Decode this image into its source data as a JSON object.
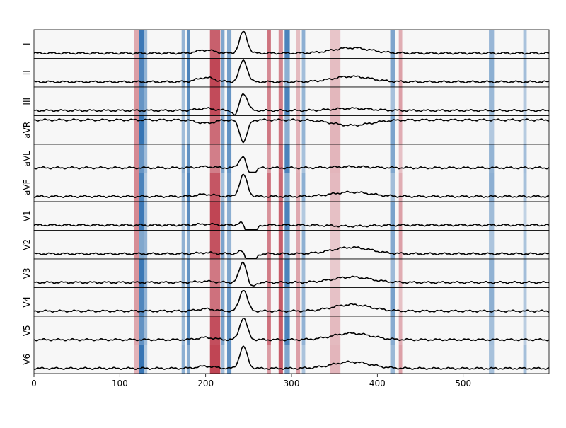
{
  "chart_data": {
    "type": "heatmap",
    "title": "",
    "xlabel": "",
    "ylabel": "",
    "xlim": [
      0,
      600
    ],
    "xticks": [
      0,
      100,
      200,
      300,
      400,
      500
    ],
    "grid": false,
    "colormap": "RdBu_r",
    "trace_color": "#000000",
    "leads": [
      {
        "name": "I",
        "morph": {
          "p": 0.15,
          "q": 0,
          "r": 1.0,
          "s": 0,
          "t": 0.25
        }
      },
      {
        "name": "II",
        "morph": {
          "p": 0.2,
          "q": 0,
          "r": 1.0,
          "s": 0,
          "t": 0.25
        }
      },
      {
        "name": "III",
        "morph": {
          "p": 0.1,
          "q": -0.3,
          "r": 0.8,
          "s": 0,
          "t": 0.1
        }
      },
      {
        "name": "aVR",
        "morph": {
          "p": -0.15,
          "q": 0,
          "r": -1.0,
          "s": 0,
          "t": -0.25
        }
      },
      {
        "name": "aVL",
        "morph": {
          "p": 0.05,
          "q": 0,
          "r": 0.6,
          "s": -0.5,
          "t": 0.05
        }
      },
      {
        "name": "aVF",
        "morph": {
          "p": 0.1,
          "q": 0,
          "r": 1.0,
          "s": 0,
          "t": 0.2
        }
      },
      {
        "name": "V1",
        "morph": {
          "p": 0.05,
          "q": 0,
          "r": 0.2,
          "s": -1.0,
          "t": -0.05
        }
      },
      {
        "name": "V2",
        "morph": {
          "p": 0.05,
          "q": 0,
          "r": 0.2,
          "s": -0.8,
          "t": 0.3
        }
      },
      {
        "name": "V3",
        "morph": {
          "p": 0.05,
          "q": 0,
          "r": 1.0,
          "s": -0.3,
          "t": 0.25
        }
      },
      {
        "name": "V4",
        "morph": {
          "p": 0.1,
          "q": 0,
          "r": 1.0,
          "s": 0,
          "t": 0.3
        }
      },
      {
        "name": "V5",
        "morph": {
          "p": 0.1,
          "q": 0,
          "r": 1.0,
          "s": 0,
          "t": 0.3
        }
      },
      {
        "name": "V6",
        "morph": {
          "p": 0.1,
          "q": 0,
          "r": 1.0,
          "s": 0,
          "t": 0.3
        }
      }
    ],
    "heat_bands": [
      {
        "x": 117,
        "w": 6,
        "v": 0.5
      },
      {
        "x": 122,
        "w": 6,
        "v": -0.9
      },
      {
        "x": 128,
        "w": 4,
        "v": -0.5
      },
      {
        "x": 172,
        "w": 4,
        "v": -0.5
      },
      {
        "x": 178,
        "w": 4,
        "v": -0.8
      },
      {
        "x": 205,
        "w": 12,
        "v": 0.8
      },
      {
        "x": 218,
        "w": 4,
        "v": -0.6
      },
      {
        "x": 225,
        "w": 5,
        "v": -0.7
      },
      {
        "x": 272,
        "w": 4,
        "v": 0.6
      },
      {
        "x": 285,
        "w": 5,
        "v": 0.7
      },
      {
        "x": 292,
        "w": 6,
        "v": -0.8
      },
      {
        "x": 305,
        "w": 5,
        "v": 0.4
      },
      {
        "x": 312,
        "w": 4,
        "v": -0.5
      },
      {
        "x": 345,
        "w": 12,
        "v": 0.3
      },
      {
        "x": 415,
        "w": 6,
        "v": -0.6
      },
      {
        "x": 425,
        "w": 4,
        "v": 0.4
      },
      {
        "x": 530,
        "w": 6,
        "v": -0.5
      },
      {
        "x": 570,
        "w": 4,
        "v": -0.4
      }
    ]
  }
}
